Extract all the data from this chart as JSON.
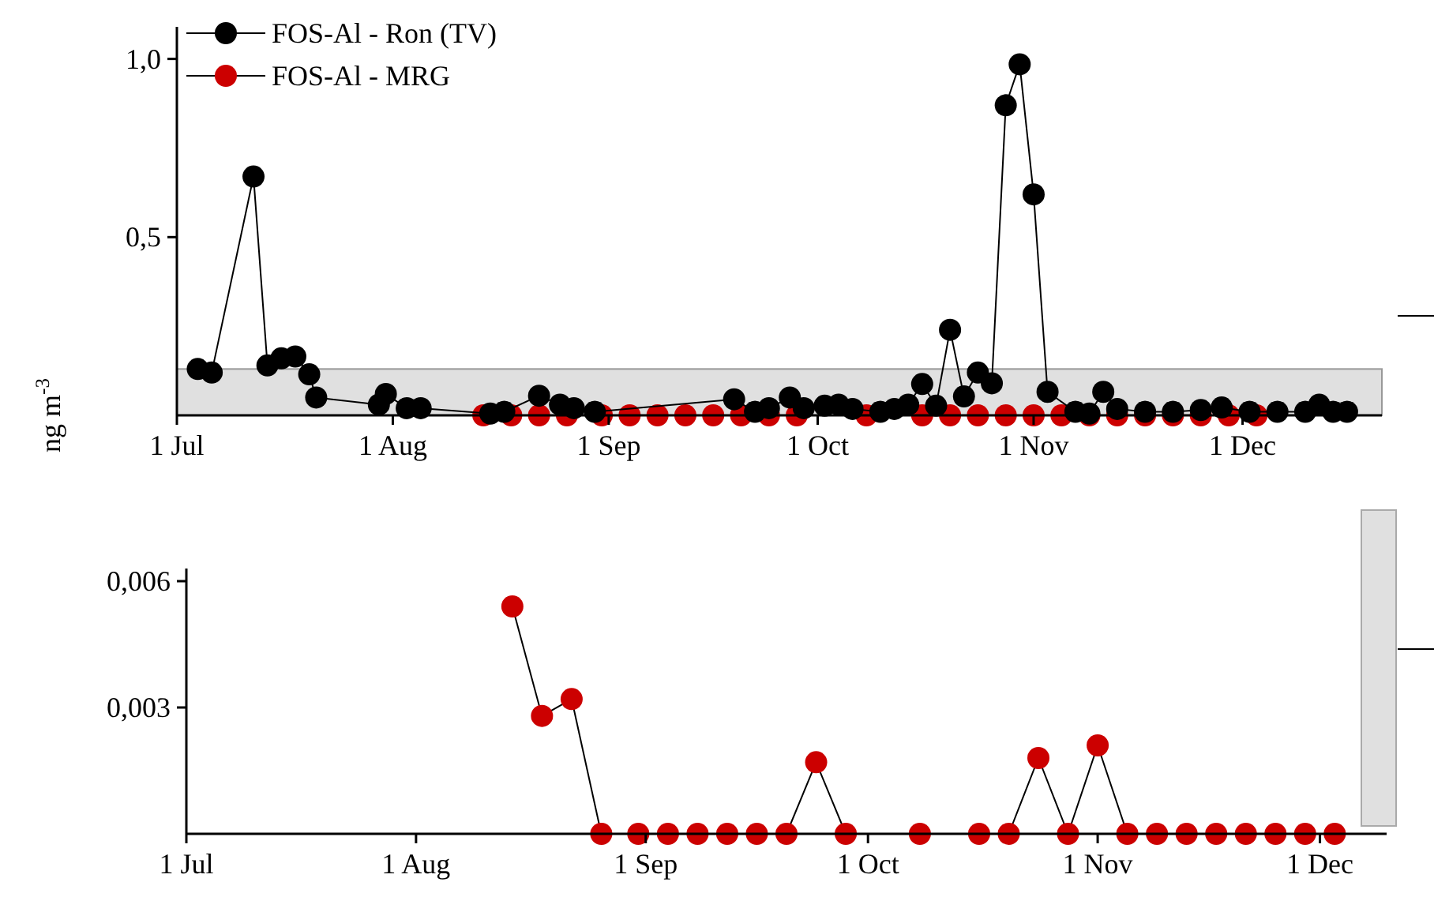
{
  "chart_data": [
    {
      "type": "line",
      "ylabel": "ng m$^{-3}$",
      "legend": "top left",
      "marker": "circle",
      "line_style": "solid",
      "xlim": [
        "--07-01",
        "--12-21"
      ],
      "xticks": [
        {
          "value": "--07-01",
          "label": "1 Jul"
        },
        {
          "value": "--08-01",
          "label": "1 Aug"
        },
        {
          "value": "--09-01",
          "label": "1 Sep"
        },
        {
          "value": "--10-01",
          "label": "1 Oct"
        },
        {
          "value": "--11-01",
          "label": "1 Nov"
        },
        {
          "value": "--12-01",
          "label": "1 Dec"
        }
      ],
      "ylim": [
        0,
        1.09
      ],
      "yticks": [
        {
          "value": 0.5,
          "label": "0,5"
        },
        {
          "value": 1,
          "label": "1,0"
        }
      ],
      "bands": [
        {
          "axis": "y",
          "from": 0,
          "to": 0.13,
          "color": "#cccccc"
        }
      ],
      "series": [
        {
          "name": "FOS-Al - Ron (TV)",
          "color": "#000000",
          "x": [
            "--07-04",
            "--07-06",
            "--07-12",
            "--07-14",
            "--07-16",
            "--07-18",
            "--07-20",
            "--07-21",
            "--07-30",
            "--07-31",
            "--08-03",
            "--08-05",
            "--08-15",
            "--08-17",
            "--08-22",
            "--08-25",
            "--08-27",
            "--08-30",
            "--09-19",
            "--09-22",
            "--09-24",
            "--09-27",
            "--09-29",
            "--10-02",
            "--10-04",
            "--10-06",
            "--10-10",
            "--10-12",
            "--10-14",
            "--10-16",
            "--10-18",
            "--10-20",
            "--10-22",
            "--10-24",
            "--10-26",
            "--10-28",
            "--10-30",
            "--11-01",
            "--11-03",
            "--11-07",
            "--11-09",
            "--11-11",
            "--11-13",
            "--11-17",
            "--11-21",
            "--11-25",
            "--11-28",
            "--12-02",
            "--12-06",
            "--12-10",
            "--12-12",
            "--12-14",
            "--12-16"
          ],
          "values": [
            0.13,
            0.12,
            0.67,
            0.14,
            0.16,
            0.165,
            0.115,
            0.05,
            0.03,
            0.06,
            0.02,
            0.02,
            0.005,
            0.01,
            0.055,
            0.03,
            0.02,
            0.01,
            0.045,
            0.01,
            0.02,
            0.05,
            0.02,
            0.027,
            0.03,
            0.018,
            0.01,
            0.018,
            0.03,
            0.088,
            0.027,
            0.24,
            0.053,
            0.12,
            0.09,
            0.87,
            0.985,
            0.62,
            0.066,
            0.01,
            0.005,
            0.066,
            0.018,
            0.01,
            0.01,
            0.015,
            0.022,
            0.01,
            0.01,
            0.01,
            0.03,
            0.01,
            0.01
          ]
        },
        {
          "name": "FOS-Al - MRG",
          "color": "#cc0000",
          "type": "scatter",
          "x": [
            "--08-14",
            "--08-18",
            "--08-22",
            "--08-26",
            "--08-31",
            "--09-04",
            "--09-08",
            "--09-12",
            "--09-16",
            "--09-20",
            "--09-24",
            "--09-28",
            "--10-08",
            "--10-16",
            "--10-20",
            "--10-24",
            "--10-28",
            "--11-01",
            "--11-05",
            "--11-09",
            "--11-13",
            "--11-17",
            "--11-21",
            "--11-25",
            "--11-29",
            "--12-03"
          ],
          "values": [
            0,
            0,
            0,
            0,
            0,
            0,
            0,
            0,
            0,
            0,
            0,
            0,
            0,
            0,
            0,
            0,
            0,
            0,
            0,
            0,
            0,
            0,
            0,
            0,
            0,
            0
          ]
        }
      ]
    },
    {
      "type": "line",
      "marker": "circle",
      "line_style": "solid",
      "xlim": [
        "--07-01",
        "--12-10"
      ],
      "xticks": [
        {
          "value": "--07-01",
          "label": "1 Jul"
        },
        {
          "value": "--08-01",
          "label": "1 Aug"
        },
        {
          "value": "--09-01",
          "label": "1 Sep"
        },
        {
          "value": "--10-01",
          "label": "1 Oct"
        },
        {
          "value": "--11-01",
          "label": "1 Nov"
        },
        {
          "value": "--12-01",
          "label": "1 Dec"
        }
      ],
      "ylim": [
        0,
        0.0063
      ],
      "yticks": [
        {
          "value": 0.003,
          "label": "0,003"
        },
        {
          "value": 0.006,
          "label": "0,006"
        }
      ],
      "series": [
        {
          "color": "#cc0000",
          "x": [
            "--08-14",
            "--08-18",
            "--08-22",
            "--08-26",
            "--08-31",
            "--09-04",
            "--09-08",
            "--09-12",
            "--09-16",
            "--09-20",
            "--09-24",
            "--09-28",
            "--10-08",
            "--10-16",
            "--10-20",
            "--10-24",
            "--10-28",
            "--11-01",
            "--11-05",
            "--11-09",
            "--11-13",
            "--11-17",
            "--11-21",
            "--11-25",
            "--11-29",
            "--12-03"
          ],
          "values": [
            0.0054,
            0.0028,
            0.0032,
            0,
            0,
            0,
            0,
            0,
            0,
            0,
            0.0017,
            0,
            0,
            0,
            0,
            0.0018,
            0,
            0.0021,
            0,
            0,
            0,
            0,
            0,
            0,
            0,
            0
          ]
        }
      ]
    }
  ]
}
